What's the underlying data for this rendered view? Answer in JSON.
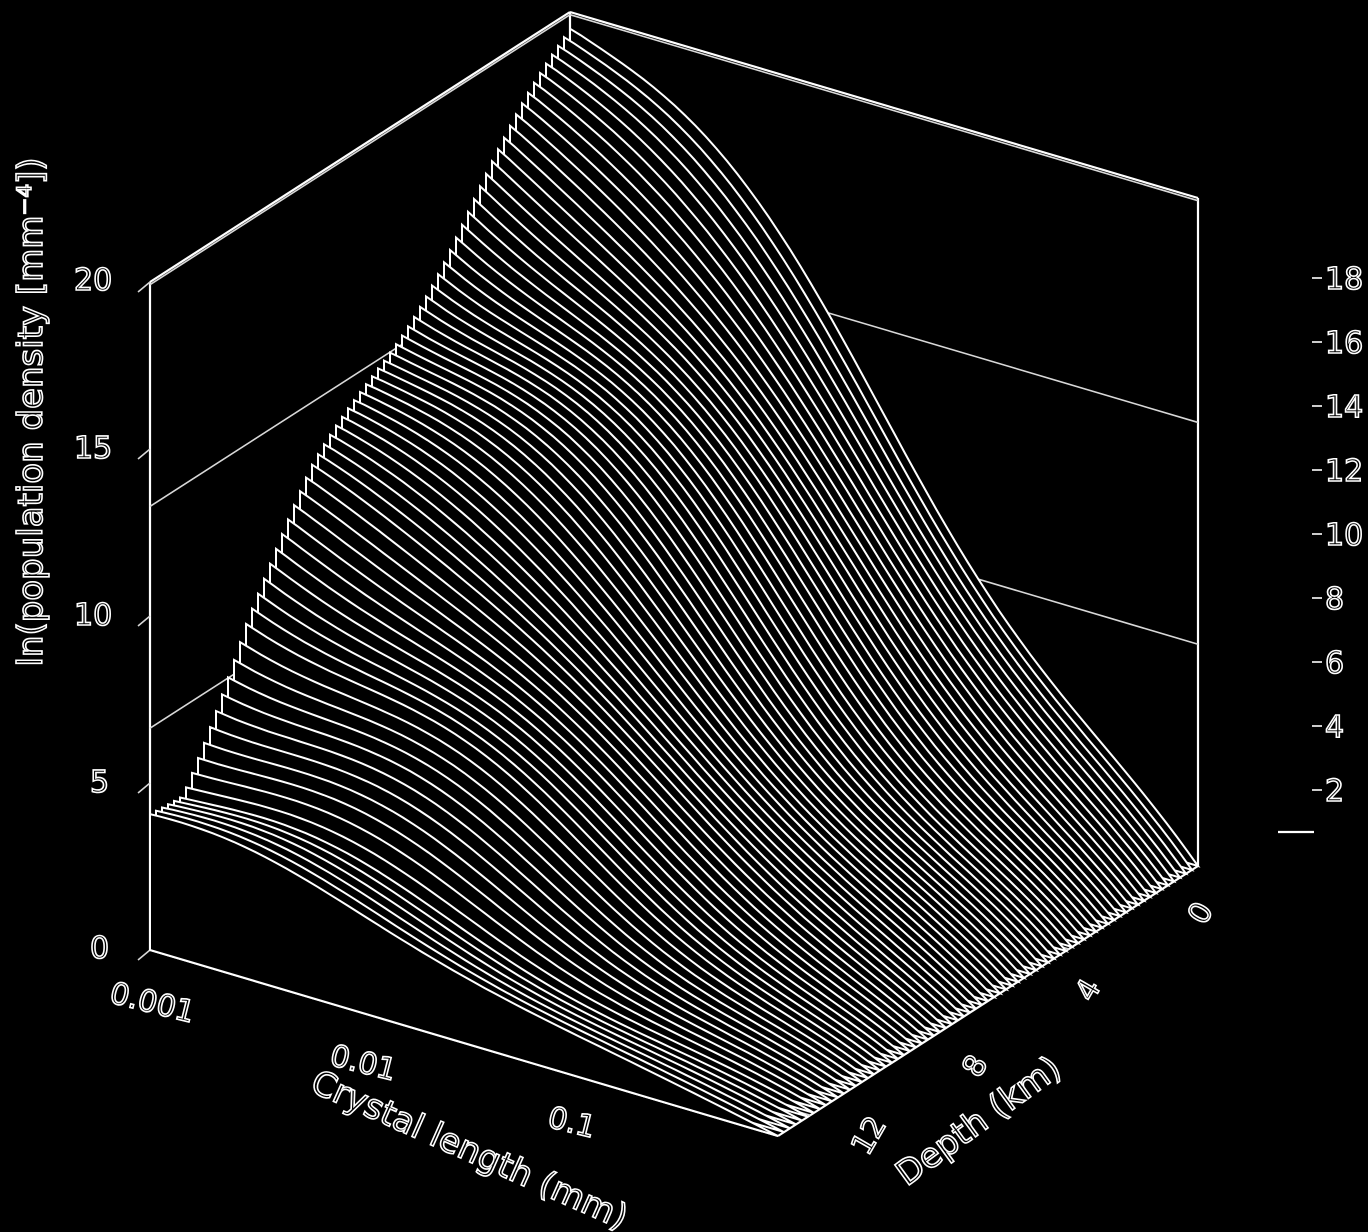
{
  "chart_data": {
    "type": "surface",
    "title": "",
    "zlabel": "ln(population density [mm⁻⁴])",
    "xlabel": "Crystal length (mm)",
    "ylabel": "Depth (km)",
    "x_scale": "log",
    "x_ticks": [
      "0.001",
      "0.01",
      "0.1"
    ],
    "y_ticks": [
      "0",
      "4",
      "8",
      "12"
    ],
    "z_ticks": [
      "0",
      "5",
      "10",
      "15",
      "20"
    ],
    "zlim": [
      0,
      20
    ],
    "colorbar_ticks": [
      "2",
      "4",
      "6",
      "8",
      "10",
      "12",
      "14",
      "16",
      "18"
    ],
    "grid": true,
    "series": [
      {
        "depth_km": 0,
        "ln_density_at_0_001mm": 19.5
      },
      {
        "depth_km": 2,
        "ln_density_at_0_001mm": 17.2
      },
      {
        "depth_km": 4,
        "ln_density_at_0_001mm": 15.1
      },
      {
        "depth_km": 6,
        "ln_density_at_0_001mm": 13.1
      },
      {
        "depth_km": 8,
        "ln_density_at_0_001mm": 11.0
      },
      {
        "depth_km": 10,
        "ln_density_at_0_001mm": 8.2
      },
      {
        "depth_km": 12,
        "ln_density_at_0_001mm": 4.2
      },
      {
        "depth_km": 13,
        "ln_density_at_0_001mm": 3.9
      }
    ]
  }
}
